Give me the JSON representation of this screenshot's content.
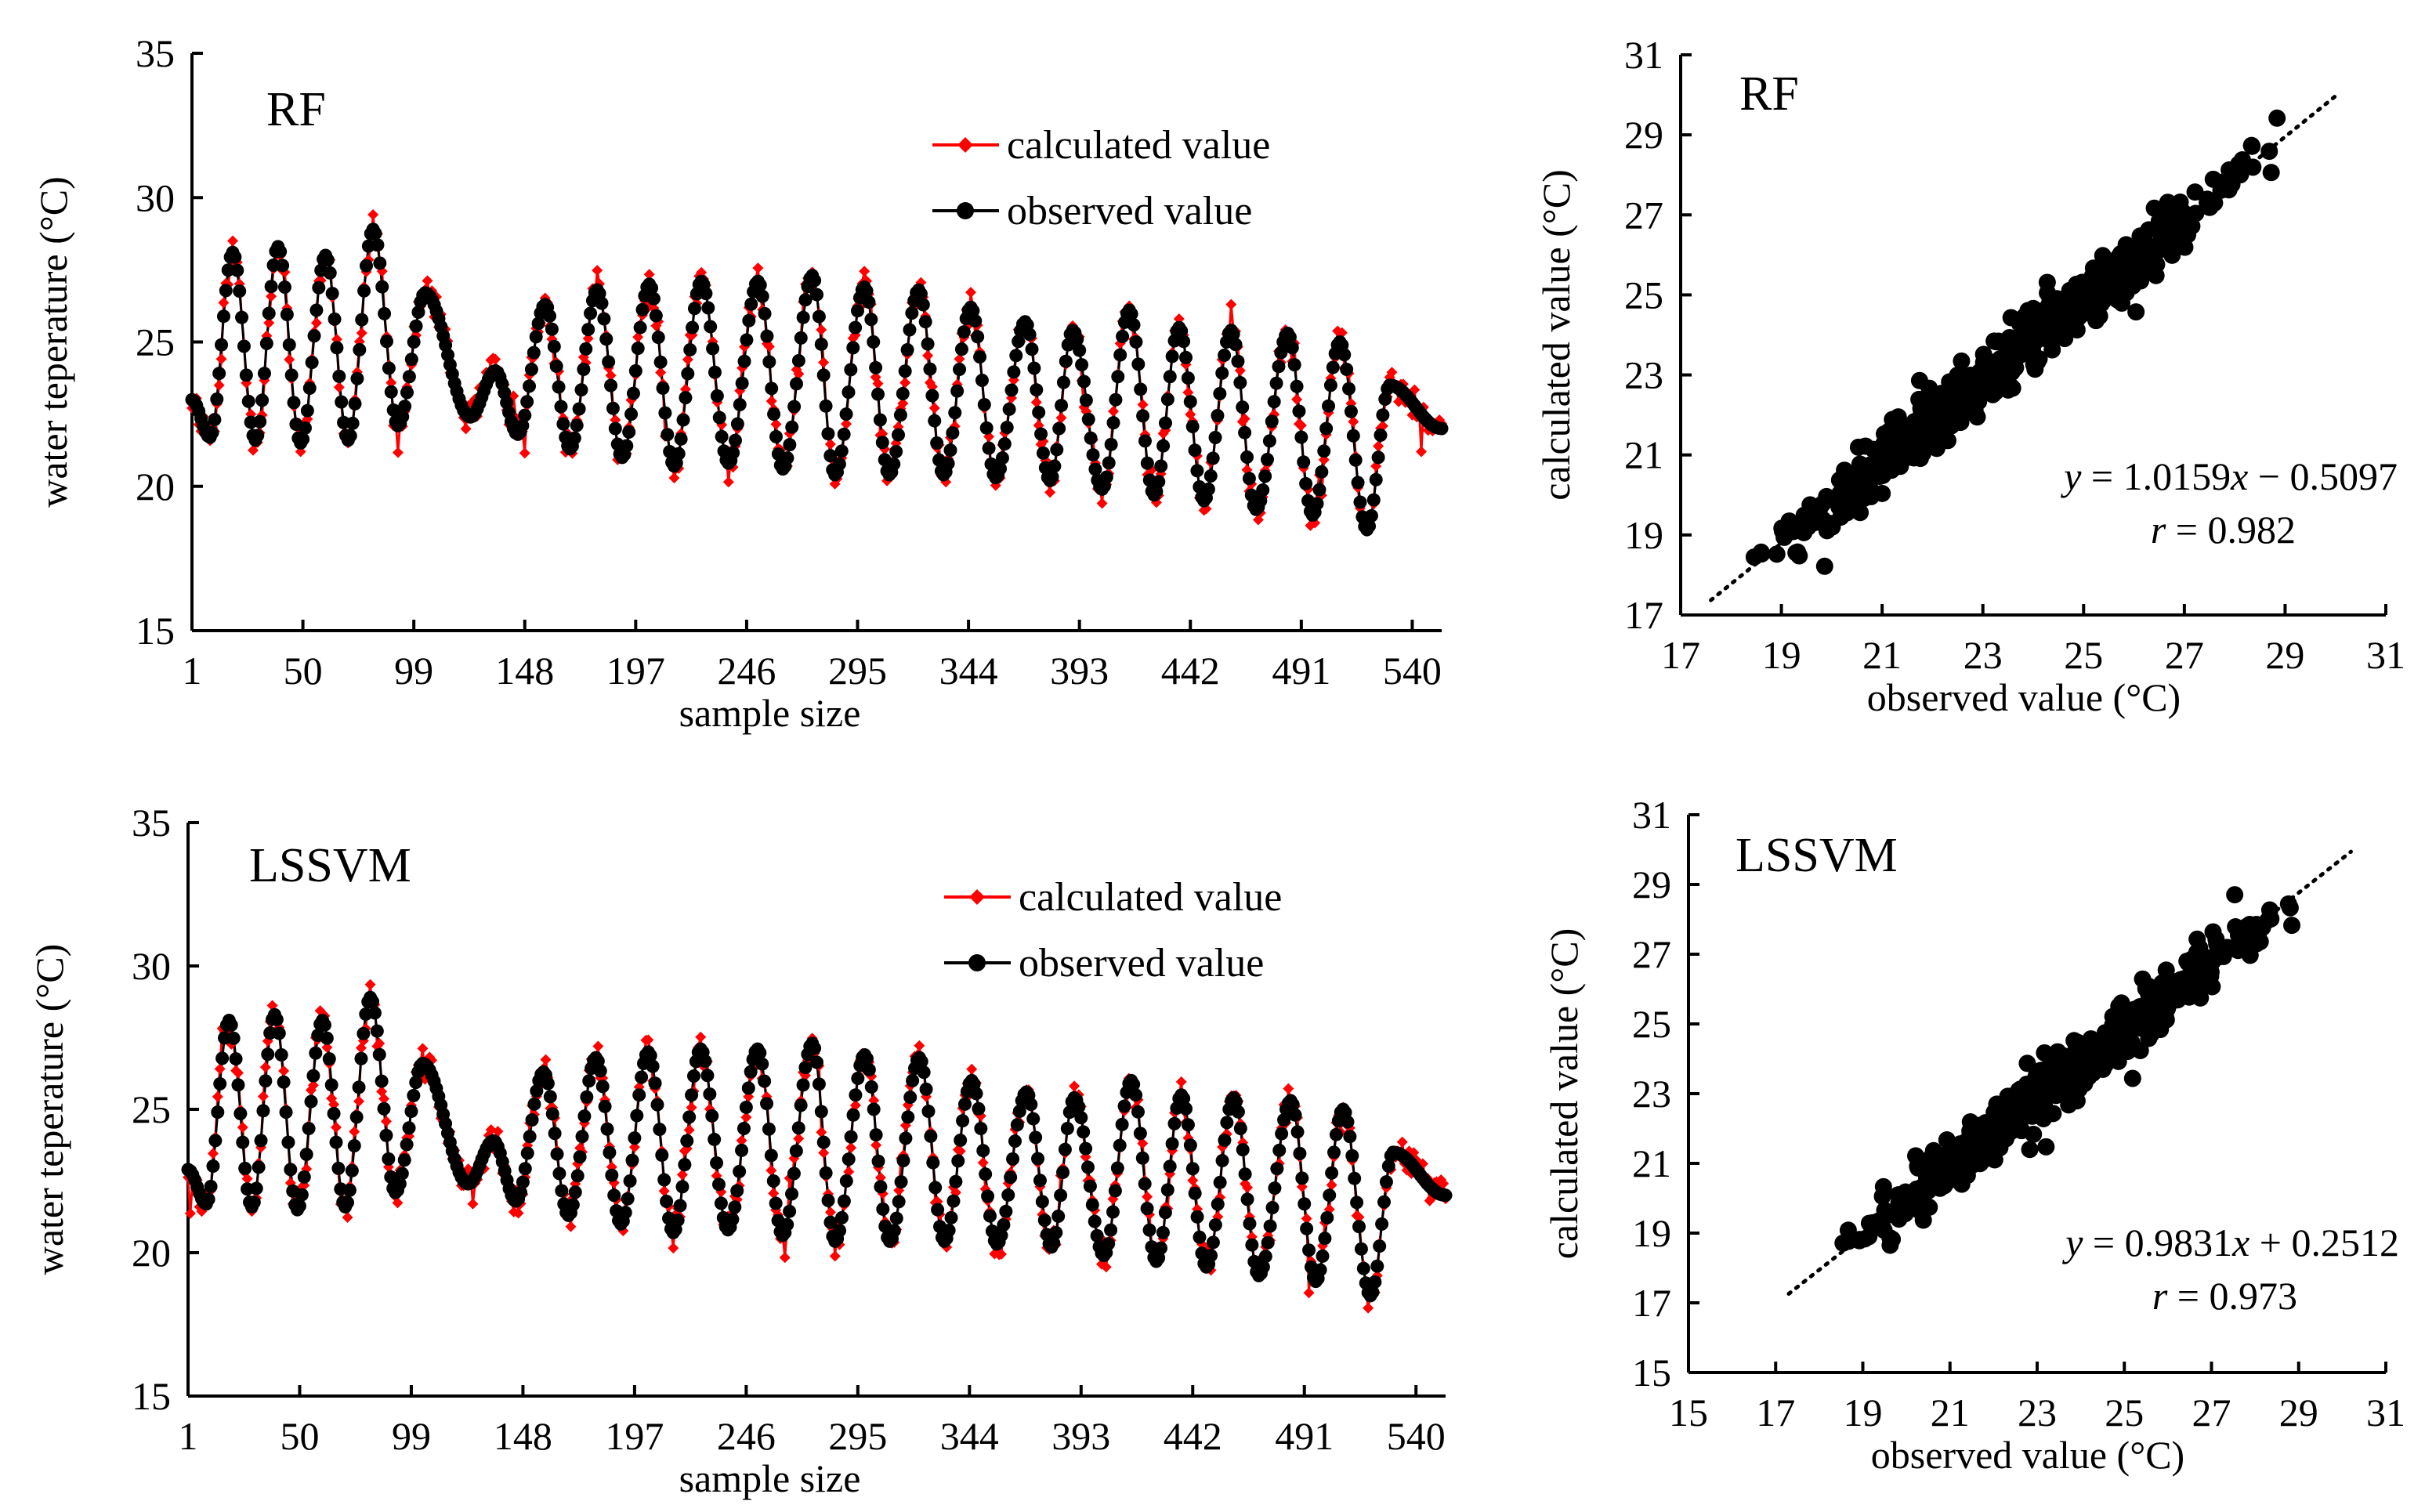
{
  "colors": {
    "calculated": "#ff0000",
    "observed": "#000000",
    "axis": "#000000"
  },
  "chart_data": [
    {
      "id": "rf-ts",
      "type": "line",
      "title": "RF",
      "xlabel": "sample size",
      "ylabel": "water teperature (°C)",
      "xlim": [
        1,
        553
      ],
      "ylim": [
        15,
        35
      ],
      "xticks": [
        1,
        50,
        99,
        148,
        197,
        246,
        295,
        344,
        393,
        442,
        491,
        540
      ],
      "yticks": [
        15,
        20,
        25,
        30,
        35
      ],
      "legend": [
        "calculated value",
        "observed value"
      ],
      "series": [
        {
          "name": "calculated value",
          "color": "#ff0000",
          "marker": "diamond",
          "values": []
        },
        {
          "name": "observed value",
          "color": "#000000",
          "marker": "circle",
          "values": []
        }
      ],
      "cycle_peaks": [
        [
          1,
          23.0
        ],
        [
          19,
          28.1
        ],
        [
          39,
          28.3
        ],
        [
          60,
          28.0
        ],
        [
          81,
          28.9
        ],
        [
          104,
          26.7
        ],
        [
          135,
          24.0
        ],
        [
          157,
          26.3
        ],
        [
          180,
          26.8
        ],
        [
          203,
          27.0
        ],
        [
          226,
          27.1
        ],
        [
          251,
          27.1
        ],
        [
          275,
          27.3
        ],
        [
          298,
          26.9
        ],
        [
          322,
          26.8
        ],
        [
          345,
          26.2
        ],
        [
          369,
          25.7
        ],
        [
          390,
          25.4
        ],
        [
          415,
          26.1
        ],
        [
          437,
          25.5
        ],
        [
          460,
          25.4
        ],
        [
          485,
          25.3
        ],
        [
          508,
          25.0
        ],
        [
          530,
          23.5
        ],
        [
          553,
          22.0
        ]
      ],
      "cycle_troughs": [
        [
          9,
          21.7
        ],
        [
          29,
          21.6
        ],
        [
          49,
          21.5
        ],
        [
          70,
          21.6
        ],
        [
          92,
          22.1
        ],
        [
          124,
          22.4
        ],
        [
          145,
          21.8
        ],
        [
          168,
          21.3
        ],
        [
          191,
          21.0
        ],
        [
          214,
          20.7
        ],
        [
          238,
          20.8
        ],
        [
          262,
          20.6
        ],
        [
          285,
          20.4
        ],
        [
          309,
          20.4
        ],
        [
          333,
          20.4
        ],
        [
          356,
          20.3
        ],
        [
          380,
          20.2
        ],
        [
          403,
          19.9
        ],
        [
          426,
          19.7
        ],
        [
          448,
          19.5
        ],
        [
          471,
          19.2
        ],
        [
          496,
          19.0
        ],
        [
          520,
          18.5
        ]
      ]
    },
    {
      "id": "rf-scatter",
      "type": "scatter",
      "title": "RF",
      "xlabel": "observed value (°C)",
      "ylabel": "calculated value (°C)",
      "xlim": [
        17,
        31
      ],
      "ylim": [
        17,
        31
      ],
      "xticks": [
        17,
        19,
        21,
        23,
        25,
        27,
        29,
        31
      ],
      "yticks": [
        17,
        19,
        21,
        23,
        25,
        27,
        29,
        31
      ],
      "fit": {
        "slope": 1.0159,
        "intercept": -0.5097,
        "r": 0.982,
        "x_range": [
          17.6,
          30.0
        ]
      },
      "equation_text": {
        "y_sym": "y",
        "eq": " = 1.0159",
        "x_sym": "x",
        "tail": " − 0.5097",
        "r_sym": "r",
        "r_val": " = 0.982"
      },
      "n_points": 553
    },
    {
      "id": "lssvm-ts",
      "type": "line",
      "title": "LSSVM",
      "xlabel": "sample size",
      "ylabel": "water teperature (°C)",
      "xlim": [
        1,
        553
      ],
      "ylim": [
        15,
        35
      ],
      "xticks": [
        1,
        50,
        99,
        148,
        197,
        246,
        295,
        344,
        393,
        442,
        491,
        540
      ],
      "yticks": [
        15,
        20,
        25,
        30,
        35
      ],
      "legend": [
        "calculated value",
        "observed value"
      ],
      "series": [
        {
          "name": "calculated value",
          "color": "#ff0000",
          "marker": "diamond",
          "values": []
        },
        {
          "name": "observed value",
          "color": "#000000",
          "marker": "circle",
          "values": []
        }
      ],
      "cycle_peaks": [
        [
          1,
          22.9
        ],
        [
          19,
          28.1
        ],
        [
          39,
          28.3
        ],
        [
          60,
          28.1
        ],
        [
          81,
          28.9
        ],
        [
          104,
          26.6
        ],
        [
          135,
          23.9
        ],
        [
          157,
          26.3
        ],
        [
          180,
          26.8
        ],
        [
          203,
          27.0
        ],
        [
          226,
          27.1
        ],
        [
          251,
          27.1
        ],
        [
          275,
          27.3
        ],
        [
          298,
          26.9
        ],
        [
          322,
          26.8
        ],
        [
          345,
          26.0
        ],
        [
          369,
          25.6
        ],
        [
          390,
          25.4
        ],
        [
          415,
          26.0
        ],
        [
          437,
          25.5
        ],
        [
          460,
          25.4
        ],
        [
          485,
          25.3
        ],
        [
          508,
          25.0
        ],
        [
          530,
          23.5
        ],
        [
          553,
          22.0
        ]
      ],
      "cycle_troughs": [
        [
          9,
          21.7
        ],
        [
          29,
          21.6
        ],
        [
          49,
          21.5
        ],
        [
          70,
          21.6
        ],
        [
          92,
          22.1
        ],
        [
          124,
          22.4
        ],
        [
          145,
          21.8
        ],
        [
          168,
          21.3
        ],
        [
          191,
          21.0
        ],
        [
          214,
          20.7
        ],
        [
          238,
          20.8
        ],
        [
          262,
          20.6
        ],
        [
          285,
          20.4
        ],
        [
          309,
          20.4
        ],
        [
          333,
          20.4
        ],
        [
          356,
          20.3
        ],
        [
          380,
          20.2
        ],
        [
          403,
          19.9
        ],
        [
          426,
          19.7
        ],
        [
          448,
          19.5
        ],
        [
          471,
          19.2
        ],
        [
          496,
          19.0
        ],
        [
          520,
          18.5
        ]
      ]
    },
    {
      "id": "lssvm-scatter",
      "type": "scatter",
      "title": "LSSVM",
      "xlabel": "observed value (°C)",
      "ylabel": "calculated value (°C)",
      "xlim": [
        15,
        31
      ],
      "ylim": [
        15,
        31
      ],
      "xticks": [
        15,
        17,
        19,
        21,
        23,
        25,
        27,
        29,
        31
      ],
      "yticks": [
        15,
        17,
        19,
        21,
        23,
        25,
        27,
        29,
        31
      ],
      "fit": {
        "slope": 0.9831,
        "intercept": 0.2512,
        "r": 0.973,
        "x_range": [
          17.3,
          30.2
        ]
      },
      "equation_text": {
        "y_sym": "y",
        "eq": " = 0.9831",
        "x_sym": "x",
        "tail": " + 0.2512",
        "r_sym": "r",
        "r_val": " = 0.973"
      },
      "n_points": 553
    }
  ]
}
